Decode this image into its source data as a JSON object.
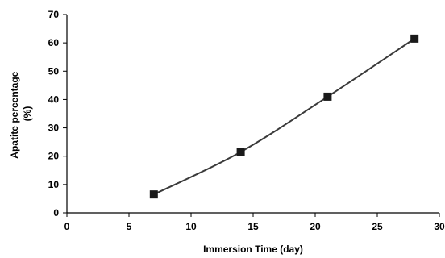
{
  "chart_data": {
    "type": "line",
    "xlabel": "Immersion Time (day)",
    "ylabel_lines": [
      "Apatite percentage",
      "(%)"
    ],
    "xlim": [
      0,
      30
    ],
    "ylim": [
      0,
      70
    ],
    "x_ticks": [
      0,
      5,
      10,
      15,
      20,
      25,
      30
    ],
    "y_ticks": [
      0,
      10,
      20,
      30,
      40,
      50,
      60,
      70
    ],
    "grid": false,
    "legend": "none",
    "series": [
      {
        "marker": "square",
        "color": "#1a1a1a",
        "line_color": "#3a3a3a",
        "points": [
          {
            "x": 7,
            "y": 6.5
          },
          {
            "x": 14,
            "y": 21.5
          },
          {
            "x": 21,
            "y": 41
          },
          {
            "x": 28,
            "y": 61.5
          }
        ]
      }
    ]
  }
}
